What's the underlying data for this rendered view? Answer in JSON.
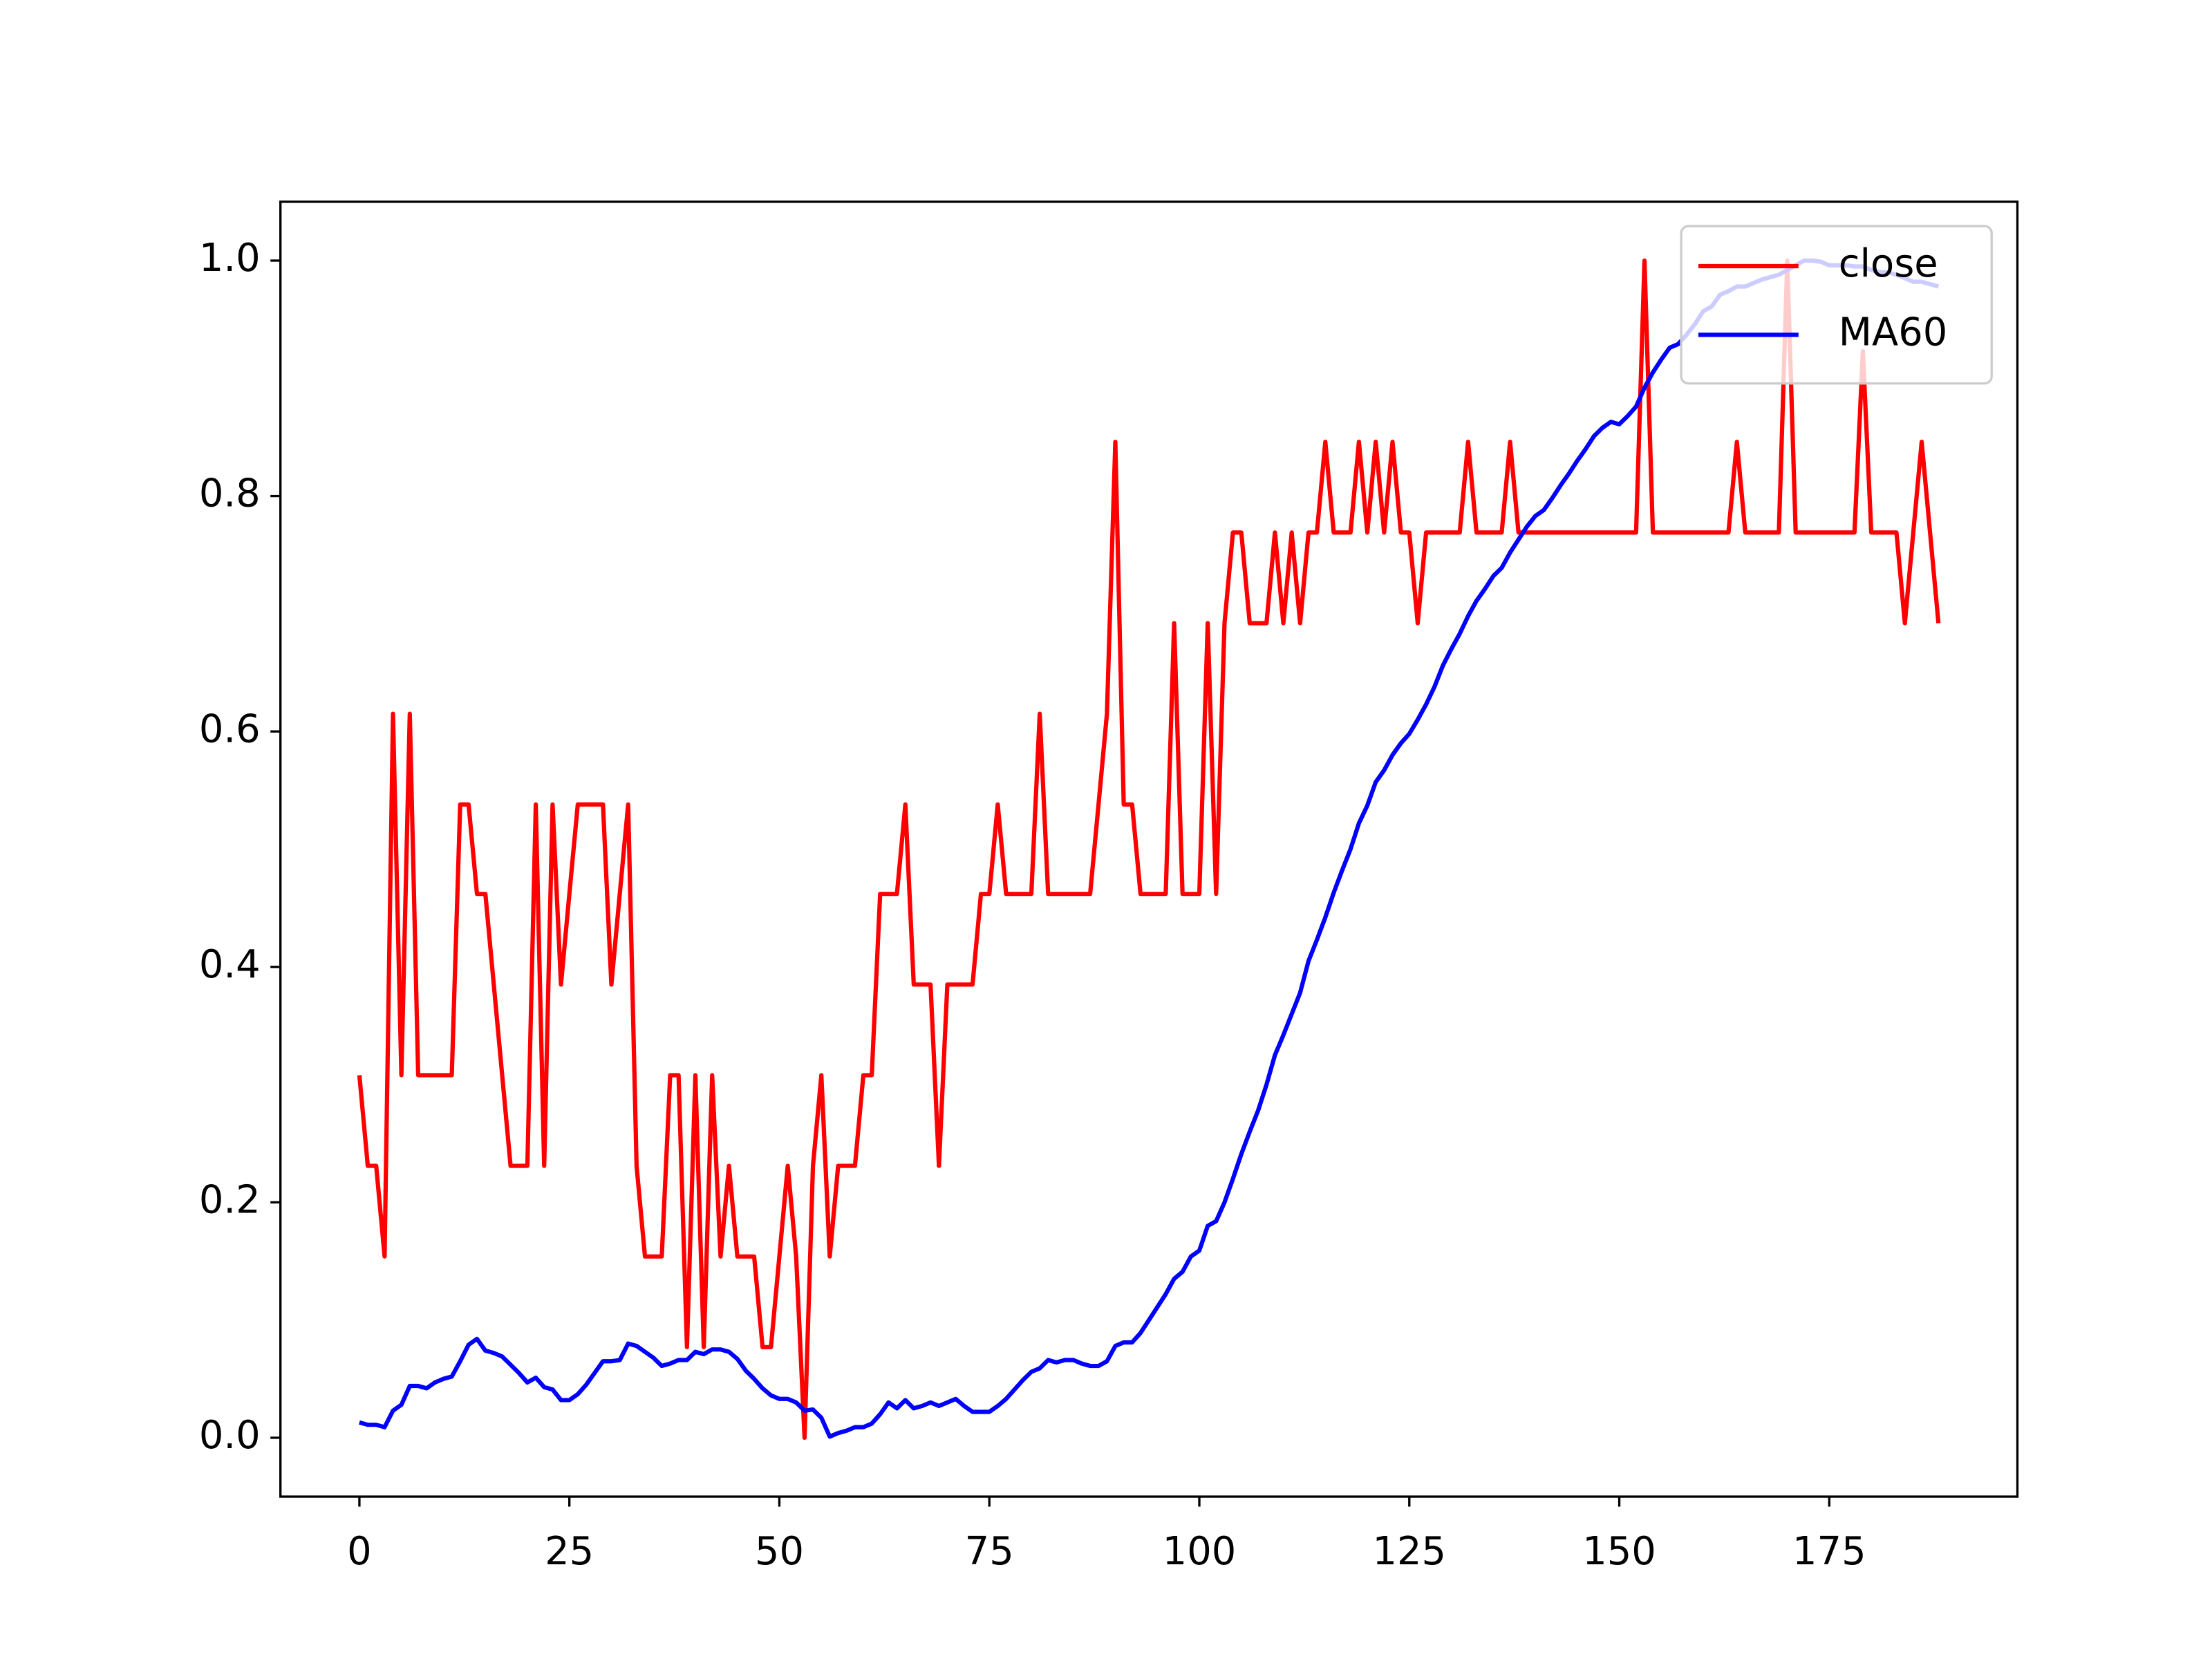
{
  "chart_data": {
    "type": "line",
    "x": [
      0,
      1,
      2,
      3,
      4,
      5,
      6,
      7,
      8,
      9,
      10,
      11,
      12,
      13,
      14,
      15,
      16,
      17,
      18,
      19,
      20,
      21,
      22,
      23,
      24,
      25,
      26,
      27,
      28,
      29,
      30,
      31,
      32,
      33,
      34,
      35,
      36,
      37,
      38,
      39,
      40,
      41,
      42,
      43,
      44,
      45,
      46,
      47,
      48,
      49,
      50,
      51,
      52,
      53,
      54,
      55,
      56,
      57,
      58,
      59,
      60,
      61,
      62,
      63,
      64,
      65,
      66,
      67,
      68,
      69,
      70,
      71,
      72,
      73,
      74,
      75,
      76,
      77,
      78,
      79,
      80,
      81,
      82,
      83,
      84,
      85,
      86,
      87,
      88,
      89,
      90,
      91,
      92,
      93,
      94,
      95,
      96,
      97,
      98,
      99,
      100,
      101,
      102,
      103,
      104,
      105,
      106,
      107,
      108,
      109,
      110,
      111,
      112,
      113,
      114,
      115,
      116,
      117,
      118,
      119,
      120,
      121,
      122,
      123,
      124,
      125,
      126,
      127,
      128,
      129,
      130,
      131,
      132,
      133,
      134,
      135,
      136,
      137,
      138,
      139,
      140,
      141,
      142,
      143,
      144,
      145,
      146,
      147,
      148,
      149,
      150,
      151,
      152,
      153,
      154,
      155,
      156,
      157,
      158,
      159,
      160,
      161,
      162,
      163,
      164,
      165,
      166,
      167,
      168,
      169,
      170,
      171,
      172,
      173,
      174,
      175,
      176,
      177,
      178,
      179,
      180,
      181,
      182,
      183,
      184,
      185,
      186,
      187,
      188
    ],
    "series": [
      {
        "name": "close",
        "color": "#ff0000",
        "values": [
          0.308,
          0.231,
          0.231,
          0.154,
          0.615,
          0.308,
          0.615,
          0.308,
          0.308,
          0.308,
          0.308,
          0.308,
          0.538,
          0.538,
          0.462,
          0.462,
          0.385,
          0.308,
          0.231,
          0.231,
          0.231,
          0.538,
          0.231,
          0.538,
          0.385,
          0.462,
          0.538,
          0.538,
          0.538,
          0.538,
          0.385,
          0.462,
          0.538,
          0.231,
          0.154,
          0.154,
          0.154,
          0.308,
          0.308,
          0.077,
          0.308,
          0.077,
          0.308,
          0.154,
          0.231,
          0.154,
          0.154,
          0.154,
          0.077,
          0.077,
          0.154,
          0.231,
          0.154,
          0,
          0.231,
          0.308,
          0.154,
          0.231,
          0.231,
          0.231,
          0.308,
          0.308,
          0.462,
          0.462,
          0.462,
          0.538,
          0.385,
          0.385,
          0.385,
          0.231,
          0.385,
          0.385,
          0.385,
          0.385,
          0.462,
          0.462,
          0.538,
          0.462,
          0.462,
          0.462,
          0.462,
          0.615,
          0.462,
          0.462,
          0.462,
          0.462,
          0.462,
          0.462,
          0.538,
          0.615,
          0.846,
          0.538,
          0.538,
          0.462,
          0.462,
          0.462,
          0.462,
          0.692,
          0.462,
          0.462,
          0.462,
          0.692,
          0.462,
          0.692,
          0.769,
          0.769,
          0.692,
          0.692,
          0.692,
          0.769,
          0.692,
          0.769,
          0.692,
          0.769,
          0.769,
          0.846,
          0.769,
          0.769,
          0.769,
          0.846,
          0.769,
          0.846,
          0.769,
          0.846,
          0.769,
          0.769,
          0.692,
          0.769,
          0.769,
          0.769,
          0.769,
          0.769,
          0.846,
          0.769,
          0.769,
          0.769,
          0.769,
          0.846,
          0.769,
          0.769,
          0.769,
          0.769,
          0.769,
          0.769,
          0.769,
          0.769,
          0.769,
          0.769,
          0.769,
          0.769,
          0.769,
          0.769,
          0.769,
          1.0,
          0.769,
          0.769,
          0.769,
          0.769,
          0.769,
          0.769,
          0.769,
          0.769,
          0.769,
          0.769,
          0.846,
          0.769,
          0.769,
          0.769,
          0.769,
          0.769,
          1.0,
          0.769,
          0.769,
          0.769,
          0.769,
          0.769,
          0.769,
          0.769,
          0.769,
          0.923,
          0.769,
          0.769,
          0.769,
          0.769,
          0.692,
          0.769,
          0.846,
          0.769,
          0.692
        ]
      },
      {
        "name": "MA60",
        "color": "#0000ff",
        "values": [
          0.013,
          0.011,
          0.011,
          0.009,
          0.023,
          0.028,
          0.044,
          0.044,
          0.042,
          0.047,
          0.05,
          0.052,
          0.065,
          0.079,
          0.084,
          0.074,
          0.072,
          0.069,
          0.062,
          0.055,
          0.047,
          0.051,
          0.043,
          0.041,
          0.032,
          0.032,
          0.037,
          0.045,
          0.055,
          0.065,
          0.065,
          0.066,
          0.08,
          0.078,
          0.073,
          0.068,
          0.061,
          0.063,
          0.066,
          0.066,
          0.073,
          0.071,
          0.075,
          0.075,
          0.073,
          0.067,
          0.057,
          0.05,
          0.042,
          0.036,
          0.033,
          0.033,
          0.03,
          0.023,
          0.024,
          0.017,
          0.001,
          0.004,
          0.006,
          0.009,
          0.009,
          0.012,
          0.02,
          0.03,
          0.025,
          0.032,
          0.025,
          0.027,
          0.03,
          0.027,
          0.03,
          0.033,
          0.027,
          0.022,
          0.022,
          0.022,
          0.027,
          0.033,
          0.041,
          0.049,
          0.056,
          0.059,
          0.066,
          0.064,
          0.066,
          0.066,
          0.063,
          0.061,
          0.061,
          0.065,
          0.078,
          0.081,
          0.081,
          0.089,
          0.1,
          0.111,
          0.122,
          0.135,
          0.141,
          0.154,
          0.159,
          0.18,
          0.184,
          0.2,
          0.22,
          0.241,
          0.26,
          0.278,
          0.3,
          0.325,
          0.342,
          0.36,
          0.378,
          0.405,
          0.423,
          0.442,
          0.463,
          0.482,
          0.5,
          0.522,
          0.537,
          0.557,
          0.567,
          0.58,
          0.59,
          0.598,
          0.61,
          0.623,
          0.638,
          0.656,
          0.67,
          0.683,
          0.698,
          0.711,
          0.721,
          0.732,
          0.739,
          0.752,
          0.763,
          0.774,
          0.783,
          0.788,
          0.798,
          0.809,
          0.819,
          0.83,
          0.84,
          0.851,
          0.858,
          0.863,
          0.861,
          0.868,
          0.876,
          0.892,
          0.905,
          0.916,
          0.926,
          0.929,
          0.937,
          0.946,
          0.957,
          0.961,
          0.971,
          0.974,
          0.978,
          0.978,
          0.981,
          0.984,
          0.986,
          0.988,
          0.992,
          0.996,
          1.0,
          1.0,
          0.999,
          0.996,
          0.996,
          0.996,
          0.995,
          0.995,
          0.992,
          0.99,
          0.99,
          0.988,
          0.985,
          0.982,
          0.982,
          0.98,
          0.978
        ]
      }
    ],
    "xlim": [
      -9.4,
      197.4
    ],
    "xticks": [
      0,
      25,
      50,
      75,
      100,
      125,
      150,
      175
    ],
    "ylim": [
      -0.05,
      1.05
    ],
    "yticks": [
      {
        "value": 0,
        "label": "0.0"
      },
      0.2,
      0.4,
      0.6,
      0.8,
      {
        "value": 1,
        "label": "1.0"
      }
    ],
    "grid": false,
    "legend": "upper right"
  }
}
